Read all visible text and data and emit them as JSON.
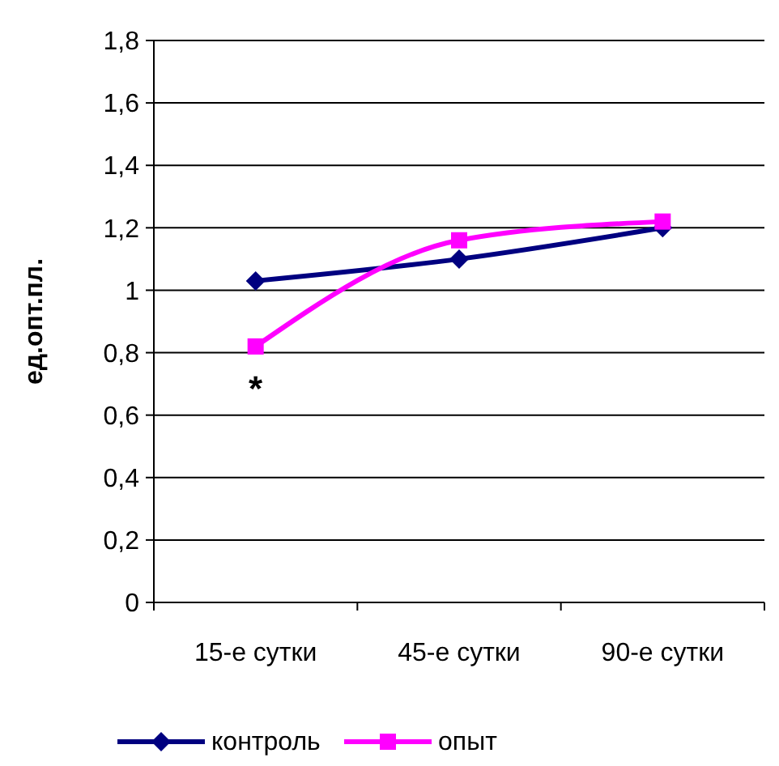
{
  "chart_data": {
    "type": "line",
    "ylabel": "ед.опт.пл.",
    "categories": [
      "15-е сутки",
      "45-е сутки",
      "90-е сутки"
    ],
    "series": [
      {
        "name": "контроль",
        "color": "#000080",
        "values": [
          1.03,
          1.1,
          1.2
        ],
        "marker": "diamond"
      },
      {
        "name": "опыт",
        "color": "#ff00ff",
        "values": [
          0.82,
          1.16,
          1.22
        ],
        "marker": "square"
      }
    ],
    "ylim": [
      0,
      1.8
    ],
    "yticks": [
      0,
      {
        "value": 0.2,
        "label": "0,2"
      },
      {
        "value": 0.4,
        "label": "0,4"
      },
      {
        "value": 0.6,
        "label": "0,6"
      },
      {
        "value": 0.8,
        "label": "0,8"
      },
      1,
      {
        "value": 1.2,
        "label": "1,2"
      },
      {
        "value": 1.4,
        "label": "1,4"
      },
      {
        "value": 1.6,
        "label": "1,6"
      },
      {
        "value": 1.8,
        "label": "1,8"
      }
    ],
    "grid": "y",
    "legend": "bottom",
    "line_style": "solid",
    "annotations": [
      "*"
    ]
  }
}
